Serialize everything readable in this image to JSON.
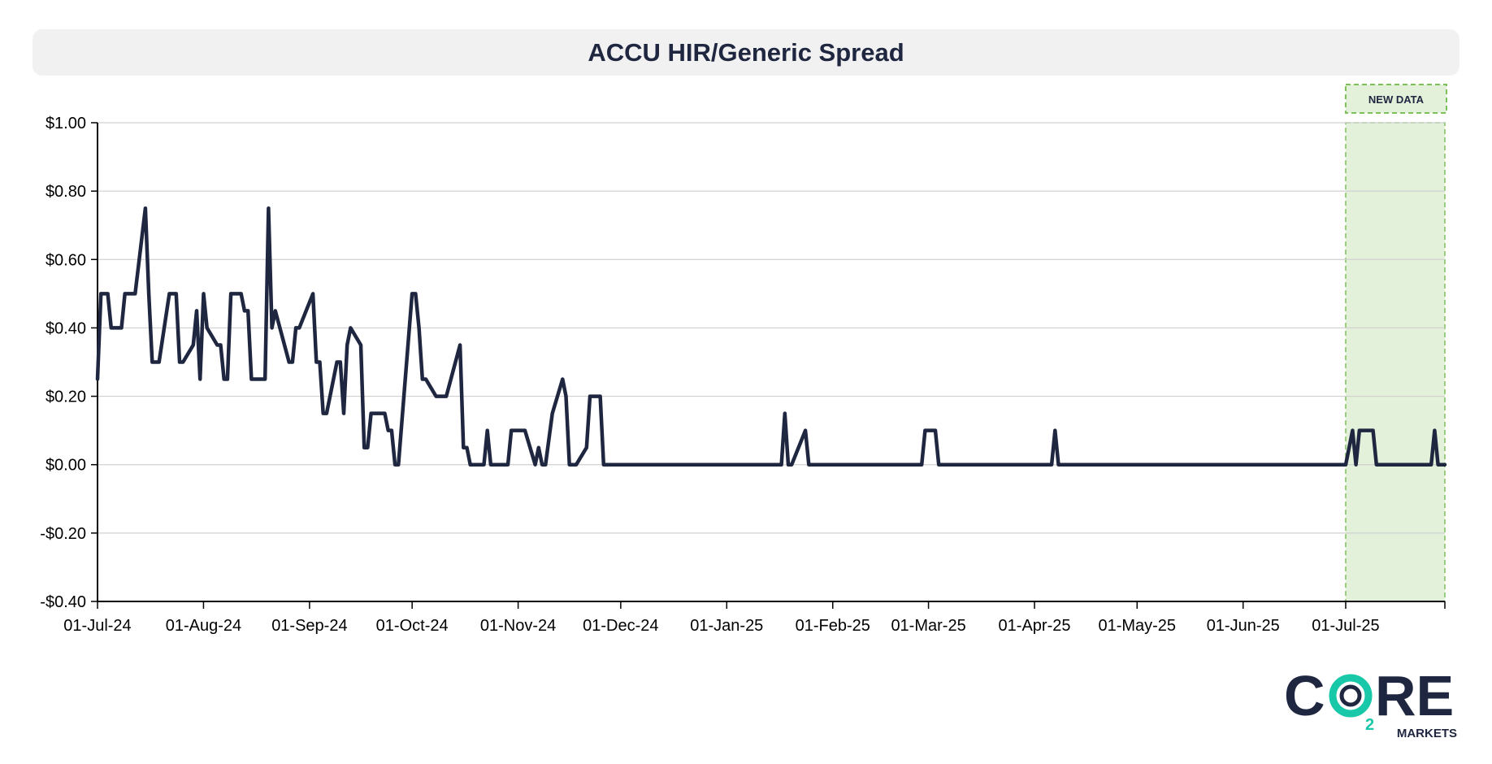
{
  "chart_data": {
    "type": "line",
    "title": "ACCU HIR/Generic Spread",
    "xlabel": "",
    "ylabel": "",
    "ylim": [
      -0.4,
      1.0
    ],
    "yticks": [
      1.0,
      0.8,
      0.6,
      0.4,
      0.2,
      0.0,
      -0.2,
      -0.4
    ],
    "ytick_labels": [
      "$1.00",
      "$0.80",
      "$0.60",
      "$0.40",
      "$0.20",
      "$0.00",
      "-$0.20",
      "-$0.40"
    ],
    "x_range": [
      "2024-07-01",
      "2025-07-30"
    ],
    "xticks": [
      "2024-07-01",
      "2024-08-01",
      "2024-09-01",
      "2024-10-01",
      "2024-11-01",
      "2024-12-01",
      "2025-01-01",
      "2025-02-01",
      "2025-03-01",
      "2025-04-01",
      "2025-05-01",
      "2025-06-01",
      "2025-07-01"
    ],
    "xtick_labels": [
      "01-Jul-24",
      "01-Aug-24",
      "01-Sep-24",
      "01-Oct-24",
      "01-Nov-24",
      "01-Dec-24",
      "01-Jan-25",
      "01-Feb-25",
      "01-Mar-25",
      "01-Apr-25",
      "01-May-25",
      "01-Jun-25",
      "01-Jul-25"
    ],
    "grid": true,
    "line_color": "#1f2640",
    "highlight": {
      "label": "NEW DATA",
      "start": "2025-07-01",
      "end": "2025-07-30",
      "fill": "#e3f0da",
      "border": "#7cc05a"
    },
    "series": [
      {
        "points": [
          [
            "2024-07-01",
            0.25
          ],
          [
            "2024-07-02",
            0.5
          ],
          [
            "2024-07-04",
            0.5
          ],
          [
            "2024-07-05",
            0.4
          ],
          [
            "2024-07-08",
            0.4
          ],
          [
            "2024-07-09",
            0.5
          ],
          [
            "2024-07-12",
            0.5
          ],
          [
            "2024-07-15",
            0.75
          ],
          [
            "2024-07-16",
            0.5
          ],
          [
            "2024-07-17",
            0.3
          ],
          [
            "2024-07-19",
            0.3
          ],
          [
            "2024-07-22",
            0.5
          ],
          [
            "2024-07-24",
            0.5
          ],
          [
            "2024-07-25",
            0.3
          ],
          [
            "2024-07-26",
            0.3
          ],
          [
            "2024-07-29",
            0.35
          ],
          [
            "2024-07-30",
            0.45
          ],
          [
            "2024-07-31",
            0.25
          ],
          [
            "2024-08-01",
            0.5
          ],
          [
            "2024-08-02",
            0.4
          ],
          [
            "2024-08-05",
            0.35
          ],
          [
            "2024-08-06",
            0.35
          ],
          [
            "2024-08-07",
            0.25
          ],
          [
            "2024-08-08",
            0.25
          ],
          [
            "2024-08-09",
            0.5
          ],
          [
            "2024-08-12",
            0.5
          ],
          [
            "2024-08-13",
            0.45
          ],
          [
            "2024-08-14",
            0.45
          ],
          [
            "2024-08-15",
            0.25
          ],
          [
            "2024-08-19",
            0.25
          ],
          [
            "2024-08-20",
            0.75
          ],
          [
            "2024-08-21",
            0.4
          ],
          [
            "2024-08-22",
            0.45
          ],
          [
            "2024-08-26",
            0.3
          ],
          [
            "2024-08-27",
            0.3
          ],
          [
            "2024-08-28",
            0.4
          ],
          [
            "2024-08-29",
            0.4
          ],
          [
            "2024-09-02",
            0.5
          ],
          [
            "2024-09-03",
            0.3
          ],
          [
            "2024-09-04",
            0.3
          ],
          [
            "2024-09-05",
            0.15
          ],
          [
            "2024-09-06",
            0.15
          ],
          [
            "2024-09-09",
            0.3
          ],
          [
            "2024-09-10",
            0.3
          ],
          [
            "2024-09-11",
            0.15
          ],
          [
            "2024-09-12",
            0.35
          ],
          [
            "2024-09-13",
            0.4
          ],
          [
            "2024-09-16",
            0.35
          ],
          [
            "2024-09-17",
            0.05
          ],
          [
            "2024-09-18",
            0.05
          ],
          [
            "2024-09-19",
            0.15
          ],
          [
            "2024-09-23",
            0.15
          ],
          [
            "2024-09-24",
            0.1
          ],
          [
            "2024-09-25",
            0.1
          ],
          [
            "2024-09-26",
            0.0
          ],
          [
            "2024-09-27",
            0.0
          ],
          [
            "2024-10-01",
            0.5
          ],
          [
            "2024-10-02",
            0.5
          ],
          [
            "2024-10-03",
            0.4
          ],
          [
            "2024-10-04",
            0.25
          ],
          [
            "2024-10-05",
            0.25
          ],
          [
            "2024-10-08",
            0.2
          ],
          [
            "2024-10-11",
            0.2
          ],
          [
            "2024-10-15",
            0.35
          ],
          [
            "2024-10-16",
            0.05
          ],
          [
            "2024-10-17",
            0.05
          ],
          [
            "2024-10-18",
            0.0
          ],
          [
            "2024-10-22",
            0.0
          ],
          [
            "2024-10-23",
            0.1
          ],
          [
            "2024-10-24",
            0.0
          ],
          [
            "2024-10-29",
            0.0
          ],
          [
            "2024-10-30",
            0.1
          ],
          [
            "2024-11-03",
            0.1
          ],
          [
            "2024-11-06",
            0.0
          ],
          [
            "2024-11-07",
            0.05
          ],
          [
            "2024-11-08",
            0.0
          ],
          [
            "2024-11-09",
            0.0
          ],
          [
            "2024-11-11",
            0.15
          ],
          [
            "2024-11-14",
            0.25
          ],
          [
            "2024-11-15",
            0.2
          ],
          [
            "2024-11-16",
            0.0
          ],
          [
            "2024-11-18",
            0.0
          ],
          [
            "2024-11-21",
            0.05
          ],
          [
            "2024-11-22",
            0.2
          ],
          [
            "2024-11-25",
            0.2
          ],
          [
            "2024-11-26",
            0.0
          ],
          [
            "2025-01-17",
            0.0
          ],
          [
            "2025-01-18",
            0.15
          ],
          [
            "2025-01-19",
            0.0
          ],
          [
            "2025-01-20",
            0.0
          ],
          [
            "2025-01-24",
            0.1
          ],
          [
            "2025-01-25",
            0.0
          ],
          [
            "2025-02-27",
            0.0
          ],
          [
            "2025-02-28",
            0.1
          ],
          [
            "2025-03-03",
            0.1
          ],
          [
            "2025-03-04",
            0.0
          ],
          [
            "2025-04-06",
            0.0
          ],
          [
            "2025-04-07",
            0.1
          ],
          [
            "2025-04-08",
            0.0
          ],
          [
            "2025-07-01",
            0.0
          ],
          [
            "2025-07-03",
            0.1
          ],
          [
            "2025-07-04",
            0.0
          ],
          [
            "2025-07-05",
            0.1
          ],
          [
            "2025-07-09",
            0.1
          ],
          [
            "2025-07-10",
            0.0
          ],
          [
            "2025-07-26",
            0.0
          ],
          [
            "2025-07-27",
            0.1
          ],
          [
            "2025-07-28",
            0.0
          ],
          [
            "2025-07-30",
            0.0
          ]
        ]
      }
    ]
  },
  "logo": {
    "word": "CORE",
    "sub": "MARKETS",
    "subscript": "2"
  }
}
